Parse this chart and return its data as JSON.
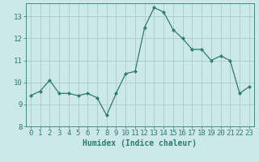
{
  "xlabel": "Humidex (Indice chaleur)",
  "x": [
    0,
    1,
    2,
    3,
    4,
    5,
    6,
    7,
    8,
    9,
    10,
    11,
    12,
    13,
    14,
    15,
    16,
    17,
    18,
    19,
    20,
    21,
    22,
    23
  ],
  "y": [
    9.4,
    9.6,
    10.1,
    9.5,
    9.5,
    9.4,
    9.5,
    9.3,
    8.5,
    9.5,
    10.4,
    10.5,
    12.5,
    13.4,
    13.2,
    12.4,
    12.0,
    11.5,
    11.5,
    11.0,
    11.2,
    11.0,
    9.5,
    9.8
  ],
  "line_color": "#2e7d6e",
  "marker": "D",
  "marker_size": 2.0,
  "bg_color": "#cce8e8",
  "grid_color": "#aacccc",
  "ylim": [
    8,
    13.6
  ],
  "yticks": [
    8,
    9,
    10,
    11,
    12,
    13
  ],
  "xticks": [
    0,
    1,
    2,
    3,
    4,
    5,
    6,
    7,
    8,
    9,
    10,
    11,
    12,
    13,
    14,
    15,
    16,
    17,
    18,
    19,
    20,
    21,
    22,
    23
  ],
  "tick_color": "#2e7d6e",
  "label_fontsize": 7,
  "tick_fontsize": 6.5,
  "linewidth": 0.9
}
